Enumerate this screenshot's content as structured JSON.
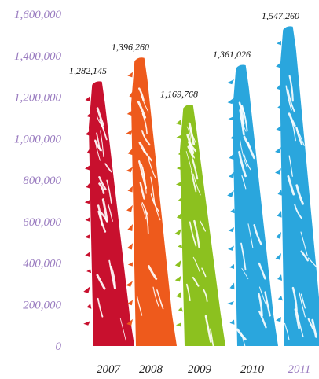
{
  "chart_data": {
    "type": "bar",
    "categories": [
      "2007",
      "2008",
      "2009",
      "2010",
      "2011"
    ],
    "values": [
      1282145,
      1396260,
      1169768,
      1361026,
      1547260
    ],
    "data_labels": [
      "1,282,145",
      "1,396,260",
      "1,169,768",
      "1,361,026",
      "1,547,260"
    ],
    "colors": [
      "#c8102e",
      "#ee5a1c",
      "#8cc11f",
      "#2aa6dd",
      "#2aa6dd"
    ],
    "category_label_colors": [
      "#222222",
      "#222222",
      "#222222",
      "#222222",
      "#9a7cc0"
    ],
    "ylim": [
      0,
      1600000
    ],
    "yticks": [
      0,
      200000,
      400000,
      600000,
      800000,
      1000000,
      1200000,
      1400000,
      1600000
    ],
    "ytick_labels": [
      "0",
      "200,000",
      "400,000",
      "600,000",
      "800,000",
      "1,000,000",
      "1,200,000",
      "1,400,000",
      "1,600,000"
    ],
    "ytick_color": "#9a7cc0",
    "grid": false,
    "legend": "none",
    "bar_style": "brush-stroke"
  }
}
